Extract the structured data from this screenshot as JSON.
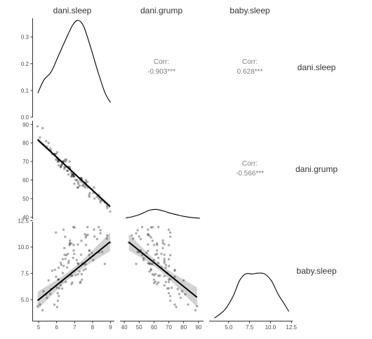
{
  "chart_data": {
    "type": "pairs-matrix",
    "variables": [
      "dani.sleep",
      "dani.grump",
      "baby.sleep"
    ],
    "column_labels": [
      "dani.sleep",
      "dani.grump",
      "baby.sleep"
    ],
    "row_labels": [
      "dani.sleep",
      "dani.grump",
      "baby.sleep"
    ],
    "ranges": {
      "dani.sleep": [
        4.8,
        9.1
      ],
      "dani.grump": [
        39,
        92
      ],
      "baby.sleep": [
        3.0,
        12.4
      ]
    },
    "ticks": {
      "dani.sleep": [
        5,
        6,
        7,
        8,
        9
      ],
      "dani.grump": [
        40,
        50,
        60,
        70,
        80,
        90
      ],
      "baby.sleep": [
        5.0,
        7.5,
        10.0,
        12.5
      ],
      "density": [
        0.0,
        0.1,
        0.2,
        0.3
      ]
    },
    "tick_labels": {
      "dani.sleep": [
        "5",
        "6",
        "7",
        "8",
        "9"
      ],
      "dani.grump": [
        "40",
        "50",
        "60",
        "70",
        "80",
        "90"
      ],
      "baby.sleep": [
        "5.0",
        "7.5",
        "10.0",
        "12.5"
      ],
      "density": [
        "0.0",
        "0.1",
        "0.2",
        "0.3"
      ]
    },
    "density_ylim": [
      0,
      0.37
    ],
    "densities": {
      "dani.sleep": {
        "x": [
          4.95,
          5.3,
          5.7,
          6.1,
          6.5,
          6.9,
          7.2,
          7.5,
          7.9,
          8.3,
          8.7,
          9.0
        ],
        "y": [
          0.09,
          0.14,
          0.17,
          0.23,
          0.29,
          0.345,
          0.362,
          0.34,
          0.26,
          0.17,
          0.09,
          0.055
        ]
      },
      "dani.grump": {
        "x": [
          41,
          45,
          50,
          54,
          57,
          60,
          63,
          67,
          71,
          76,
          81,
          86,
          91
        ],
        "y": [
          0.004,
          0.008,
          0.016,
          0.026,
          0.033,
          0.036,
          0.035,
          0.029,
          0.022,
          0.015,
          0.009,
          0.005,
          0.003
        ]
      },
      "baby.sleep": {
        "x": [
          3.3,
          4.5,
          5.5,
          6.3,
          7.0,
          7.8,
          8.5,
          9.3,
          10.1,
          10.9,
          11.7,
          12.2
        ],
        "y": [
          0.01,
          0.04,
          0.09,
          0.15,
          0.175,
          0.175,
          0.178,
          0.175,
          0.15,
          0.1,
          0.06,
          0.035
        ]
      }
    },
    "correlations": [
      {
        "row": "dani.sleep",
        "col": "dani.grump",
        "label": "Corr:",
        "value": "-0.903***"
      },
      {
        "row": "dani.sleep",
        "col": "baby.sleep",
        "label": "Corr:",
        "value": "0.628***"
      },
      {
        "row": "dani.grump",
        "col": "baby.sleep",
        "label": "Corr:",
        "value": "-0.566***"
      }
    ],
    "regressions": {
      "grump_vs_sleep": {
        "intercept": 125.97,
        "slope": -8.94
      },
      "baby_vs_sleep": {
        "intercept": -1.9,
        "slope": 1.38
      },
      "baby_vs_grump": {
        "intercept": 15.37,
        "slope": -0.114
      }
    },
    "scatter": {
      "dani.sleep": [
        6.72,
        5.96,
        7.62,
        6.43,
        6.73,
        8.25,
        6.02,
        6.34,
        7.18,
        6.47,
        6.87,
        7.72,
        5.55,
        6.11,
        8.08,
        7.63,
        6.22,
        7.33,
        6.07,
        8.35,
        6.66,
        6.83,
        7.61,
        5.41,
        6.44,
        7.12,
        8.53,
        7.39,
        7.19,
        6.08,
        6.49,
        5.07,
        6.68,
        7.31,
        8.04,
        7.5,
        6.03,
        5.27,
        5.65,
        6.74,
        7.28,
        7.36,
        6.54,
        5.75,
        8.68,
        6.38,
        7.73,
        7.51,
        6.63,
        6.34,
        8.35,
        6.99,
        5.22,
        6.14,
        5.9,
        8.8,
        7.81,
        6.11,
        7.41,
        6.23,
        6.81,
        7.83,
        6.87,
        6.31,
        5.88,
        7.38,
        6.94,
        6.28,
        7.96,
        7.58,
        6.51,
        8.11,
        4.94,
        5.68,
        8.44,
        6.62,
        7.82,
        6.26,
        7.64,
        6.95,
        6.12,
        7.18,
        8.98,
        5.97,
        7.06,
        6.74,
        7.62,
        6.39,
        5.46,
        6.06,
        8.82,
        7.21,
        6.92,
        6.98,
        7.43,
        6.83,
        7.85,
        6.58,
        8.44,
        6.95
      ],
      "dani.grump": [
        70,
        71,
        58,
        66,
        67,
        51,
        72,
        69,
        56,
        71,
        63,
        59,
        80,
        68,
        56,
        60,
        67,
        61,
        71,
        50,
        63,
        62,
        59,
        81,
        67,
        60,
        49,
        61,
        59,
        70,
        67,
        83,
        67,
        60,
        53,
        58,
        75,
        79,
        77,
        66,
        57,
        61,
        71,
        74,
        48,
        70,
        56,
        57,
        67,
        70,
        52,
        58,
        88,
        70,
        74,
        46,
        52,
        71,
        60,
        67,
        64,
        56,
        63,
        69,
        74,
        59,
        63,
        68,
        55,
        56,
        70,
        50,
        89,
        76,
        49,
        65,
        51,
        68,
        57,
        62,
        71,
        56,
        43,
        74,
        60,
        66,
        58,
        70,
        78,
        70,
        45,
        58,
        63,
        62,
        57,
        62,
        53,
        65,
        48,
        62
      ],
      "baby.sleep": [
        10.18,
        11.38,
        7.92,
        9.91,
        10.27,
        10.76,
        6.14,
        7.53,
        8.47,
        10.98,
        7.27,
        11.89,
        6.84,
        8.05,
        11.67,
        10.21,
        6.36,
        6.71,
        4.91,
        9.51,
        8.49,
        10.35,
        8.37,
        5.5,
        9.26,
        8.76,
        9.55,
        7.43,
        7.42,
        6.91,
        8.88,
        4.54,
        8.68,
        6.59,
        8.76,
        7.81,
        4.3,
        5.8,
        5.54,
        10.39,
        7.68,
        9.27,
        9.23,
        7.75,
        8.4,
        11.65,
        11.16,
        8.41,
        7.24,
        8.85,
        11.9,
        11.86,
        4.0,
        6.08,
        7.84,
        10.81,
        9.26,
        6.94,
        6.91,
        8.51,
        7.28,
        9.65,
        6.64,
        6.06,
        4.53,
        10.59,
        11.9,
        6.68,
        9.45,
        11.22,
        6.68,
        11.0,
        4.38,
        6.0,
        11.6,
        9.35,
        9.68,
        8.31,
        11.07,
        10.19,
        5.35,
        10.24,
        10.43,
        7.18,
        7.34,
        10.62,
        10.92,
        8.2,
        5.17,
        5.62,
        11.11,
        8.38,
        8.97,
        9.35,
        8.43,
        6.48,
        8.94,
        8.06,
        11.31,
        9.67
      ]
    }
  }
}
